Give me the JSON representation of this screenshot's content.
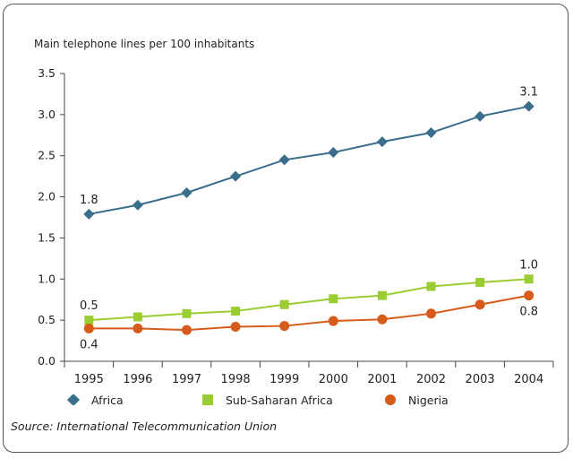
{
  "chart_data": {
    "type": "line",
    "ylabel": "Main telephone lines per 100 inhabitants",
    "xlabel": "",
    "x": [
      "1995",
      "1996",
      "1997",
      "1998",
      "1999",
      "2000",
      "2001",
      "2002",
      "2003",
      "2004"
    ],
    "ylim": [
      0,
      3.5
    ],
    "yticks": [
      "0.0",
      "0.5",
      "1.0",
      "1.5",
      "2.0",
      "2.5",
      "3.0",
      "3.5"
    ],
    "grid": false,
    "legend_position": "bottom",
    "series": [
      {
        "name": "Africa",
        "color": "#3a6e8a",
        "marker": "diamond",
        "values": [
          1.79,
          1.9,
          2.05,
          2.25,
          2.45,
          2.54,
          2.67,
          2.78,
          2.98,
          3.1
        ]
      },
      {
        "name": "Sub-Saharan Africa",
        "color": "#9acd32",
        "marker": "square",
        "values": [
          0.5,
          0.54,
          0.58,
          0.61,
          0.69,
          0.76,
          0.8,
          0.91,
          0.96,
          1.0
        ]
      },
      {
        "name": "Nigeria",
        "color": "#d65a1a",
        "marker": "circle",
        "values": [
          0.4,
          0.4,
          0.38,
          0.42,
          0.43,
          0.49,
          0.51,
          0.58,
          0.69,
          0.8
        ]
      }
    ],
    "annotations": [
      {
        "text": "1.8",
        "series": 0,
        "index": 0,
        "place": "above"
      },
      {
        "text": "3.1",
        "series": 0,
        "index": 9,
        "place": "above"
      },
      {
        "text": "0.5",
        "series": 1,
        "index": 0,
        "place": "above"
      },
      {
        "text": "1.0",
        "series": 1,
        "index": 9,
        "place": "above"
      },
      {
        "text": "0.4",
        "series": 2,
        "index": 0,
        "place": "below"
      },
      {
        "text": "0.8",
        "series": 2,
        "index": 9,
        "place": "below"
      }
    ]
  },
  "source": "Source: International Telecommunication Union"
}
